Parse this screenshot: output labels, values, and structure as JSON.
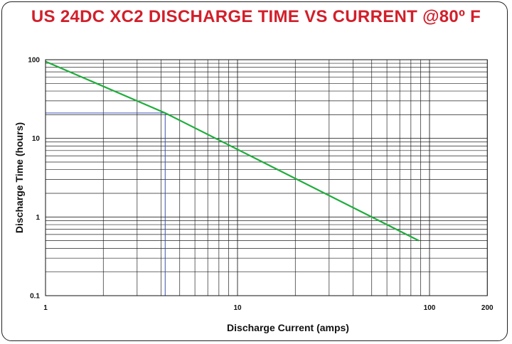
{
  "chart_data": {
    "type": "line",
    "title": "US 24DC XC2 DISCHARGE TIME VS CURRENT @80º F",
    "xlabel": "Discharge Current (amps)",
    "ylabel": "Discharge Time (hours)",
    "x_scale": "log",
    "y_scale": "log",
    "xlim": [
      1,
      200
    ],
    "ylim": [
      0.1,
      100
    ],
    "x_ticks": [
      "1",
      "10",
      "100",
      "200"
    ],
    "y_ticks": [
      "100",
      "10",
      "1",
      "0.1"
    ],
    "grid": true,
    "series": [
      {
        "x": [
          1,
          4.2,
          88
        ],
        "y": [
          95,
          21,
          0.5
        ],
        "color": "#1fad3c"
      }
    ],
    "annotations": [
      {
        "type": "reference_lines",
        "x": 4.2,
        "y": 21,
        "color": "#3a4fb0"
      }
    ]
  }
}
